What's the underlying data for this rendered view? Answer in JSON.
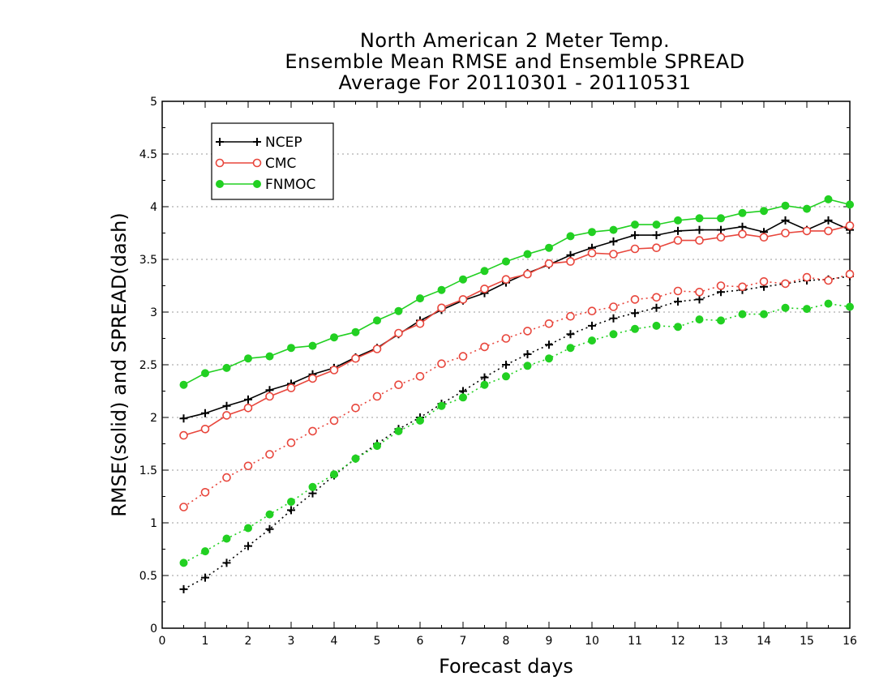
{
  "chart_data": {
    "type": "line",
    "title_lines": [
      "North American 2 Meter Temp.",
      "Ensemble Mean RMSE and Ensemble SPREAD",
      "Average For 20110301 - 20110531"
    ],
    "xlabel": "Forecast days",
    "ylabel": "RMSE(solid) and SPREAD(dash)",
    "xlim": [
      0,
      16
    ],
    "ylim": [
      0,
      5
    ],
    "xticks": [
      "0",
      "1",
      "2",
      "3",
      "4",
      "5",
      "6",
      "7",
      "8",
      "9",
      "10",
      "11",
      "12",
      "13",
      "14",
      "15",
      "16"
    ],
    "yticks": [
      "0",
      "0.5",
      "1",
      "1.5",
      "2",
      "2.5",
      "3",
      "3.5",
      "4",
      "4.5",
      "5"
    ],
    "grid": "horizontal dotted",
    "legend_position": "top-left",
    "x": [
      0.5,
      1,
      1.5,
      2,
      2.5,
      3,
      3.5,
      4,
      4.5,
      5,
      5.5,
      6,
      6.5,
      7,
      7.5,
      8,
      8.5,
      9,
      9.5,
      10,
      10.5,
      11,
      11.5,
      12,
      12.5,
      13,
      13.5,
      14,
      14.5,
      15,
      15.5,
      16
    ],
    "series": [
      {
        "name": "NCEP",
        "color": "#000000",
        "marker": "plus",
        "rmse": [
          1.99,
          2.04,
          2.11,
          2.17,
          2.26,
          2.32,
          2.41,
          2.47,
          2.57,
          2.66,
          2.79,
          2.92,
          3.02,
          3.11,
          3.18,
          3.28,
          3.37,
          3.45,
          3.54,
          3.61,
          3.67,
          3.73,
          3.73,
          3.77,
          3.78,
          3.78,
          3.81,
          3.76,
          3.87,
          3.78,
          3.87,
          3.78
        ],
        "spread": [
          0.37,
          0.48,
          0.62,
          0.78,
          0.94,
          1.12,
          1.28,
          1.45,
          1.61,
          1.75,
          1.89,
          2.0,
          2.13,
          2.25,
          2.38,
          2.5,
          2.6,
          2.69,
          2.79,
          2.87,
          2.94,
          2.99,
          3.04,
          3.1,
          3.12,
          3.19,
          3.21,
          3.24,
          3.27,
          3.3,
          3.31,
          3.34
        ]
      },
      {
        "name": "CMC",
        "color": "#e8463c",
        "marker": "open-circle",
        "rmse": [
          1.83,
          1.89,
          2.02,
          2.09,
          2.2,
          2.28,
          2.37,
          2.45,
          2.56,
          2.65,
          2.8,
          2.89,
          3.04,
          3.12,
          3.22,
          3.31,
          3.36,
          3.46,
          3.48,
          3.56,
          3.55,
          3.6,
          3.61,
          3.68,
          3.68,
          3.71,
          3.74,
          3.71,
          3.75,
          3.77,
          3.77,
          3.82
        ],
        "spread": [
          1.15,
          1.29,
          1.43,
          1.54,
          1.65,
          1.76,
          1.87,
          1.97,
          2.09,
          2.2,
          2.31,
          2.39,
          2.51,
          2.58,
          2.67,
          2.75,
          2.82,
          2.89,
          2.96,
          3.01,
          3.05,
          3.12,
          3.14,
          3.2,
          3.19,
          3.25,
          3.24,
          3.29,
          3.27,
          3.33,
          3.3,
          3.36
        ]
      },
      {
        "name": "FNMOC",
        "color": "#22d022",
        "marker": "filled-circle",
        "rmse": [
          2.31,
          2.42,
          2.47,
          2.56,
          2.58,
          2.66,
          2.68,
          2.76,
          2.81,
          2.92,
          3.01,
          3.13,
          3.21,
          3.31,
          3.39,
          3.48,
          3.55,
          3.61,
          3.72,
          3.76,
          3.78,
          3.83,
          3.83,
          3.87,
          3.89,
          3.89,
          3.94,
          3.96,
          4.01,
          3.98,
          4.07,
          4.02
        ],
        "spread": [
          0.62,
          0.73,
          0.85,
          0.95,
          1.08,
          1.2,
          1.34,
          1.46,
          1.61,
          1.73,
          1.87,
          1.97,
          2.11,
          2.19,
          2.31,
          2.39,
          2.49,
          2.56,
          2.66,
          2.73,
          2.79,
          2.84,
          2.87,
          2.86,
          2.93,
          2.92,
          2.98,
          2.98,
          3.04,
          3.03,
          3.08,
          3.05
        ]
      }
    ]
  }
}
